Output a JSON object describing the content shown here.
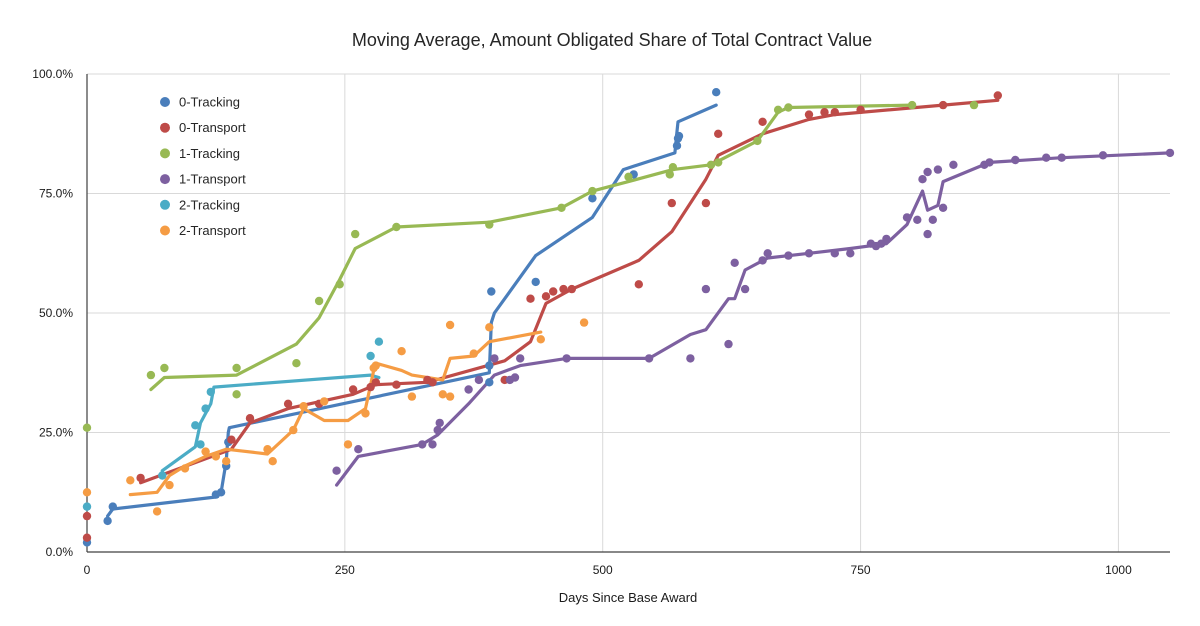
{
  "chart_data": {
    "type": "scatter",
    "title": "Moving Average, Amount Obligated Share of Total Contract Value",
    "xlabel": "Days Since Base Award",
    "ylabel": "",
    "xlim": [
      0,
      1050
    ],
    "ylim": [
      0,
      1.0
    ],
    "x_ticks": [
      0,
      250,
      500,
      750,
      1000
    ],
    "x_tick_labels": [
      "0",
      "250",
      "500",
      "750",
      "1000"
    ],
    "y_ticks": [
      0,
      0.25,
      0.5,
      0.75,
      1.0
    ],
    "y_tick_labels": [
      "0.0%",
      "25.0%",
      "50.0%",
      "75.0%",
      "100.0%"
    ],
    "grid": true,
    "legend_position": "top-left",
    "series": [
      {
        "name": "0-Tracking",
        "color": "#4a7ebb",
        "points": [
          [
            0,
            0.02
          ],
          [
            20,
            0.065
          ],
          [
            25,
            0.095
          ],
          [
            125,
            0.12
          ],
          [
            130,
            0.125
          ],
          [
            135,
            0.18
          ],
          [
            137,
            0.23
          ],
          [
            390,
            0.355
          ],
          [
            392,
            0.545
          ],
          [
            390,
            0.39
          ],
          [
            435,
            0.565
          ],
          [
            490,
            0.74
          ],
          [
            530,
            0.79
          ],
          [
            572,
            0.85
          ],
          [
            573,
            0.865
          ],
          [
            574,
            0.87
          ],
          [
            610,
            0.962
          ]
        ],
        "line": [
          [
            20,
            0.075
          ],
          [
            25,
            0.09
          ],
          [
            125,
            0.115
          ],
          [
            130,
            0.125
          ],
          [
            135,
            0.19
          ],
          [
            137,
            0.25
          ],
          [
            138,
            0.26
          ],
          [
            390,
            0.375
          ],
          [
            392,
            0.48
          ],
          [
            395,
            0.5
          ],
          [
            435,
            0.62
          ],
          [
            490,
            0.7
          ],
          [
            520,
            0.8
          ],
          [
            570,
            0.835
          ],
          [
            572,
            0.88
          ],
          [
            573,
            0.9
          ],
          [
            610,
            0.935
          ]
        ]
      },
      {
        "name": "0-Transport",
        "color": "#be4b48",
        "points": [
          [
            0,
            0.075
          ],
          [
            0,
            0.03
          ],
          [
            52,
            0.155
          ],
          [
            140,
            0.235
          ],
          [
            158,
            0.28
          ],
          [
            195,
            0.31
          ],
          [
            225,
            0.31
          ],
          [
            258,
            0.34
          ],
          [
            275,
            0.345
          ],
          [
            280,
            0.355
          ],
          [
            300,
            0.35
          ],
          [
            330,
            0.36
          ],
          [
            335,
            0.355
          ],
          [
            405,
            0.36
          ],
          [
            430,
            0.53
          ],
          [
            445,
            0.535
          ],
          [
            452,
            0.545
          ],
          [
            462,
            0.55
          ],
          [
            470,
            0.55
          ],
          [
            535,
            0.56
          ],
          [
            567,
            0.73
          ],
          [
            600,
            0.73
          ],
          [
            612,
            0.875
          ],
          [
            655,
            0.9
          ],
          [
            700,
            0.915
          ],
          [
            715,
            0.92
          ],
          [
            725,
            0.92
          ],
          [
            750,
            0.925
          ],
          [
            830,
            0.935
          ],
          [
            883,
            0.955
          ]
        ],
        "line": [
          [
            52,
            0.145
          ],
          [
            140,
            0.215
          ],
          [
            158,
            0.27
          ],
          [
            195,
            0.3
          ],
          [
            258,
            0.33
          ],
          [
            280,
            0.35
          ],
          [
            330,
            0.355
          ],
          [
            405,
            0.4
          ],
          [
            430,
            0.44
          ],
          [
            445,
            0.52
          ],
          [
            470,
            0.55
          ],
          [
            535,
            0.61
          ],
          [
            567,
            0.67
          ],
          [
            600,
            0.78
          ],
          [
            612,
            0.83
          ],
          [
            655,
            0.875
          ],
          [
            700,
            0.905
          ],
          [
            725,
            0.915
          ],
          [
            830,
            0.935
          ],
          [
            883,
            0.945
          ]
        ]
      },
      {
        "name": "1-Tracking",
        "color": "#98b954",
        "points": [
          [
            0,
            0.26
          ],
          [
            62,
            0.37
          ],
          [
            75,
            0.385
          ],
          [
            145,
            0.33
          ],
          [
            145,
            0.385
          ],
          [
            203,
            0.395
          ],
          [
            225,
            0.525
          ],
          [
            245,
            0.56
          ],
          [
            260,
            0.665
          ],
          [
            300,
            0.68
          ],
          [
            390,
            0.685
          ],
          [
            460,
            0.72
          ],
          [
            490,
            0.755
          ],
          [
            525,
            0.785
          ],
          [
            565,
            0.79
          ],
          [
            568,
            0.805
          ],
          [
            605,
            0.81
          ],
          [
            612,
            0.815
          ],
          [
            650,
            0.86
          ],
          [
            670,
            0.925
          ],
          [
            680,
            0.93
          ],
          [
            800,
            0.935
          ],
          [
            860,
            0.935
          ]
        ],
        "line": [
          [
            62,
            0.34
          ],
          [
            75,
            0.365
          ],
          [
            145,
            0.37
          ],
          [
            203,
            0.435
          ],
          [
            225,
            0.49
          ],
          [
            245,
            0.57
          ],
          [
            260,
            0.635
          ],
          [
            300,
            0.68
          ],
          [
            390,
            0.69
          ],
          [
            460,
            0.72
          ],
          [
            490,
            0.755
          ],
          [
            525,
            0.775
          ],
          [
            568,
            0.8
          ],
          [
            605,
            0.81
          ],
          [
            650,
            0.86
          ],
          [
            670,
            0.92
          ],
          [
            680,
            0.93
          ],
          [
            800,
            0.935
          ]
        ]
      },
      {
        "name": "1-Transport",
        "color": "#7d60a0",
        "points": [
          [
            242,
            0.17
          ],
          [
            263,
            0.215
          ],
          [
            325,
            0.225
          ],
          [
            335,
            0.225
          ],
          [
            340,
            0.255
          ],
          [
            342,
            0.27
          ],
          [
            370,
            0.34
          ],
          [
            380,
            0.36
          ],
          [
            395,
            0.405
          ],
          [
            410,
            0.36
          ],
          [
            415,
            0.365
          ],
          [
            420,
            0.405
          ],
          [
            465,
            0.405
          ],
          [
            545,
            0.405
          ],
          [
            585,
            0.405
          ],
          [
            600,
            0.55
          ],
          [
            622,
            0.435
          ],
          [
            628,
            0.605
          ],
          [
            638,
            0.55
          ],
          [
            655,
            0.61
          ],
          [
            660,
            0.625
          ],
          [
            680,
            0.62
          ],
          [
            700,
            0.625
          ],
          [
            725,
            0.625
          ],
          [
            740,
            0.625
          ],
          [
            760,
            0.645
          ],
          [
            765,
            0.64
          ],
          [
            770,
            0.645
          ],
          [
            775,
            0.655
          ],
          [
            795,
            0.7
          ],
          [
            805,
            0.695
          ],
          [
            810,
            0.78
          ],
          [
            815,
            0.795
          ],
          [
            815,
            0.665
          ],
          [
            820,
            0.695
          ],
          [
            825,
            0.8
          ],
          [
            830,
            0.72
          ],
          [
            840,
            0.81
          ],
          [
            870,
            0.81
          ],
          [
            875,
            0.815
          ],
          [
            900,
            0.82
          ],
          [
            930,
            0.825
          ],
          [
            945,
            0.825
          ],
          [
            985,
            0.83
          ],
          [
            1050,
            0.835
          ]
        ],
        "line": [
          [
            242,
            0.14
          ],
          [
            263,
            0.2
          ],
          [
            325,
            0.225
          ],
          [
            340,
            0.245
          ],
          [
            370,
            0.31
          ],
          [
            395,
            0.37
          ],
          [
            420,
            0.39
          ],
          [
            465,
            0.405
          ],
          [
            545,
            0.405
          ],
          [
            585,
            0.455
          ],
          [
            600,
            0.465
          ],
          [
            622,
            0.53
          ],
          [
            628,
            0.53
          ],
          [
            638,
            0.59
          ],
          [
            660,
            0.615
          ],
          [
            700,
            0.625
          ],
          [
            740,
            0.635
          ],
          [
            775,
            0.645
          ],
          [
            795,
            0.685
          ],
          [
            810,
            0.755
          ],
          [
            815,
            0.715
          ],
          [
            825,
            0.725
          ],
          [
            830,
            0.775
          ],
          [
            875,
            0.815
          ],
          [
            945,
            0.825
          ],
          [
            1050,
            0.835
          ]
        ]
      },
      {
        "name": "2-Tracking",
        "color": "#4bacc6",
        "points": [
          [
            0,
            0.095
          ],
          [
            73,
            0.16
          ],
          [
            105,
            0.265
          ],
          [
            115,
            0.3
          ],
          [
            120,
            0.335
          ],
          [
            110,
            0.225
          ],
          [
            275,
            0.41
          ],
          [
            283,
            0.44
          ]
        ],
        "line": [
          [
            73,
            0.17
          ],
          [
            105,
            0.22
          ],
          [
            110,
            0.27
          ],
          [
            120,
            0.31
          ],
          [
            123,
            0.345
          ],
          [
            275,
            0.37
          ],
          [
            283,
            0.365
          ]
        ]
      },
      {
        "name": "2-Transport",
        "color": "#f59c44",
        "points": [
          [
            0,
            0.125
          ],
          [
            42,
            0.15
          ],
          [
            68,
            0.085
          ],
          [
            80,
            0.14
          ],
          [
            95,
            0.175
          ],
          [
            115,
            0.21
          ],
          [
            125,
            0.2
          ],
          [
            135,
            0.19
          ],
          [
            175,
            0.215
          ],
          [
            180,
            0.19
          ],
          [
            200,
            0.255
          ],
          [
            210,
            0.305
          ],
          [
            230,
            0.315
          ],
          [
            253,
            0.225
          ],
          [
            270,
            0.29
          ],
          [
            278,
            0.385
          ],
          [
            280,
            0.39
          ],
          [
            305,
            0.42
          ],
          [
            315,
            0.325
          ],
          [
            345,
            0.33
          ],
          [
            352,
            0.325
          ],
          [
            352,
            0.475
          ],
          [
            375,
            0.415
          ],
          [
            390,
            0.47
          ],
          [
            440,
            0.445
          ],
          [
            482,
            0.48
          ]
        ],
        "line": [
          [
            42,
            0.12
          ],
          [
            68,
            0.125
          ],
          [
            80,
            0.16
          ],
          [
            95,
            0.18
          ],
          [
            115,
            0.2
          ],
          [
            135,
            0.215
          ],
          [
            175,
            0.205
          ],
          [
            200,
            0.255
          ],
          [
            210,
            0.3
          ],
          [
            230,
            0.275
          ],
          [
            253,
            0.275
          ],
          [
            270,
            0.3
          ],
          [
            278,
            0.38
          ],
          [
            280,
            0.395
          ],
          [
            305,
            0.38
          ],
          [
            315,
            0.37
          ],
          [
            345,
            0.36
          ],
          [
            352,
            0.405
          ],
          [
            375,
            0.41
          ],
          [
            390,
            0.44
          ],
          [
            440,
            0.46
          ]
        ]
      }
    ]
  }
}
